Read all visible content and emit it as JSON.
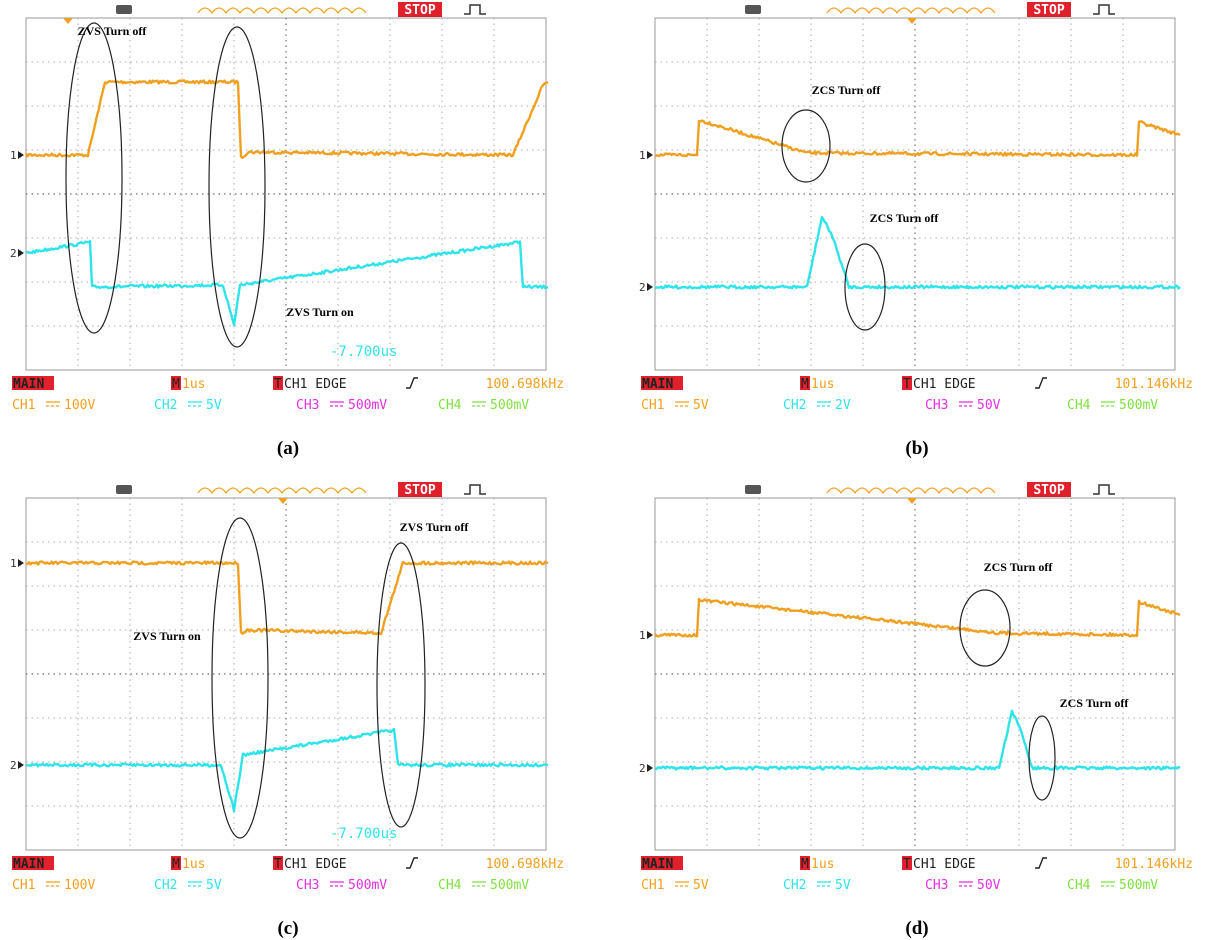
{
  "panels": [
    {
      "label": "(a)",
      "run": "STOP",
      "main": "MAIN",
      "timebase_prefix": "M",
      "timebase": "1us",
      "trigger_prefix": "T",
      "trigger": "CH1 EDGE",
      "frequency": "100.698kHz",
      "offset": "-7.700us",
      "markers": [
        "1",
        "2"
      ],
      "channels": [
        {
          "name": "CH1",
          "scale": "100V"
        },
        {
          "name": "CH2",
          "scale": "5V"
        },
        {
          "name": "CH3",
          "scale": "500mV"
        },
        {
          "name": "CH4",
          "scale": "500mV"
        }
      ],
      "annotations": [
        "ZVS Turn off",
        "ZVS Turn on"
      ]
    },
    {
      "label": "(b)",
      "run": "STOP",
      "main": "MAIN",
      "timebase_prefix": "M",
      "timebase": "1us",
      "trigger_prefix": "T",
      "trigger": "CH1 EDGE",
      "frequency": "101.146kHz",
      "markers": [
        "1",
        "2"
      ],
      "channels": [
        {
          "name": "CH1",
          "scale": "5V"
        },
        {
          "name": "CH2",
          "scale": "2V"
        },
        {
          "name": "CH3",
          "scale": "50V"
        },
        {
          "name": "CH4",
          "scale": "500mV"
        }
      ],
      "annotations": [
        "ZCS Turn off",
        "ZCS Turn off"
      ]
    },
    {
      "label": "(c)",
      "run": "STOP",
      "main": "MAIN",
      "timebase_prefix": "M",
      "timebase": "1us",
      "trigger_prefix": "T",
      "trigger": "CH1 EDGE",
      "frequency": "100.698kHz",
      "offset": "-7.700us",
      "markers": [
        "1",
        "2"
      ],
      "channels": [
        {
          "name": "CH1",
          "scale": "100V"
        },
        {
          "name": "CH2",
          "scale": "5V"
        },
        {
          "name": "CH3",
          "scale": "500mV"
        },
        {
          "name": "CH4",
          "scale": "500mV"
        }
      ],
      "annotations": [
        "ZVS Turn off",
        "ZVS Turn on"
      ]
    },
    {
      "label": "(d)",
      "run": "STOP",
      "main": "MAIN",
      "timebase_prefix": "M",
      "timebase": "1us",
      "trigger_prefix": "T",
      "trigger": "CH1 EDGE",
      "frequency": "101.146kHz",
      "markers": [
        "1",
        "2"
      ],
      "channels": [
        {
          "name": "CH1",
          "scale": "5V"
        },
        {
          "name": "CH2",
          "scale": "5V"
        },
        {
          "name": "CH3",
          "scale": "50V"
        },
        {
          "name": "CH4",
          "scale": "500mV"
        }
      ],
      "annotations": [
        "ZCS Turn off",
        "ZCS Turn off"
      ]
    }
  ]
}
